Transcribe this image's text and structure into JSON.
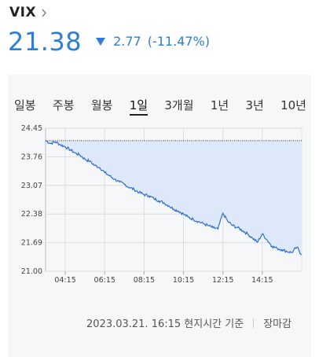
{
  "header": {
    "title": "VIX"
  },
  "quote": {
    "price": "21.38",
    "change": "2.77",
    "change_pct": "(-11.47%)",
    "color": "#2d7ed8"
  },
  "tabs": [
    {
      "label": "일봉"
    },
    {
      "label": "주봉"
    },
    {
      "label": "월봉"
    },
    {
      "label": "1일",
      "active": true
    },
    {
      "label": "3개월"
    },
    {
      "label": "1년"
    },
    {
      "label": "3년"
    },
    {
      "label": "10년"
    }
  ],
  "chart_data": {
    "type": "area",
    "y_ticks": [
      "24.45",
      "23.76",
      "23.07",
      "22.38",
      "21.69",
      "21.00"
    ],
    "ylim": [
      21.0,
      24.45
    ],
    "x_ticks": [
      "04:15",
      "06:15",
      "08:15",
      "10:15",
      "12:15",
      "14:15"
    ],
    "reference_line": 24.15,
    "grid": true,
    "fill_color": "#dde9fb",
    "line_color": "#2d6ed0",
    "series": [
      {
        "x": [
          "03:15",
          "03:30",
          "03:45",
          "04:00",
          "04:15",
          "04:30",
          "04:45",
          "05:00",
          "05:15",
          "05:30",
          "05:45",
          "06:00",
          "06:15",
          "06:30",
          "06:45",
          "07:00",
          "07:15",
          "07:30",
          "07:45",
          "08:00",
          "08:15",
          "08:30",
          "08:45",
          "09:00",
          "09:15",
          "09:30",
          "09:45",
          "10:00",
          "10:15",
          "10:30",
          "10:45",
          "11:00",
          "11:15",
          "11:30",
          "11:45",
          "12:00",
          "12:15",
          "12:30",
          "12:45",
          "13:00",
          "13:15",
          "13:30",
          "13:45",
          "14:00",
          "14:15",
          "14:30",
          "14:45",
          "15:00",
          "15:15",
          "15:30",
          "15:45",
          "16:00",
          "16:15"
        ],
        "values": [
          24.15,
          24.08,
          24.12,
          24.05,
          24.0,
          23.93,
          23.85,
          23.8,
          23.7,
          23.65,
          23.55,
          23.5,
          23.38,
          23.3,
          23.22,
          23.15,
          23.1,
          23.02,
          22.97,
          22.9,
          22.85,
          22.82,
          22.75,
          22.7,
          22.65,
          22.58,
          22.5,
          22.45,
          22.38,
          22.3,
          22.25,
          22.2,
          22.15,
          22.1,
          22.05,
          22.02,
          22.4,
          22.2,
          22.1,
          22.05,
          21.98,
          21.9,
          21.8,
          21.7,
          21.9,
          21.75,
          21.6,
          21.55,
          21.52,
          21.48,
          21.45,
          21.58,
          21.4
        ]
      }
    ]
  },
  "footer": {
    "timestamp": "2023.03.21. 16:15 현지시간 기준",
    "status": "장마감"
  }
}
